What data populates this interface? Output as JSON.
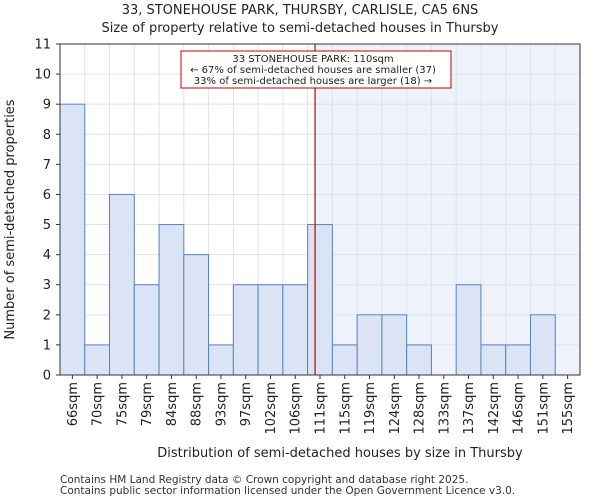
{
  "title": "33, STONEHOUSE PARK, THURSBY, CARLISLE, CA5 6NS",
  "subtitle": "Size of property relative to semi-detached houses in Thursby",
  "footer": [
    "Contains HM Land Registry data © Crown copyright and database right 2025.",
    "Contains public sector information licensed under the Open Government Licence v3.0."
  ],
  "colors": {
    "bar_fill": "#dbe4f4",
    "bar_stroke": "#5b7fc4",
    "highlight_region": "#eef2fa",
    "marker_line": "#c00000",
    "annotation_border": "#c00000"
  },
  "chart_data": {
    "type": "bar",
    "categories": [
      "66sqm",
      "70sqm",
      "75sqm",
      "79sqm",
      "84sqm",
      "88sqm",
      "93sqm",
      "97sqm",
      "102sqm",
      "106sqm",
      "111sqm",
      "115sqm",
      "119sqm",
      "124sqm",
      "128sqm",
      "133sqm",
      "137sqm",
      "142sqm",
      "146sqm",
      "151sqm",
      "155sqm"
    ],
    "values": [
      9,
      1,
      6,
      3,
      5,
      4,
      1,
      3,
      3,
      3,
      5,
      1,
      2,
      2,
      1,
      0,
      3,
      1,
      1,
      2,
      0
    ],
    "xlabel": "Distribution of semi-detached houses by size in Thursby",
    "ylabel": "Number of semi-detached properties",
    "ylim": [
      0,
      11
    ],
    "yticks": [
      0,
      1,
      2,
      3,
      4,
      5,
      6,
      7,
      8,
      9,
      10,
      11
    ],
    "grid": true,
    "marker": {
      "value_sqm": 110,
      "label_lines": [
        "33 STONEHOUSE PARK: 110sqm",
        "← 67% of semi-detached houses are smaller (37)",
        "33% of semi-detached houses are larger (18) →"
      ]
    }
  }
}
